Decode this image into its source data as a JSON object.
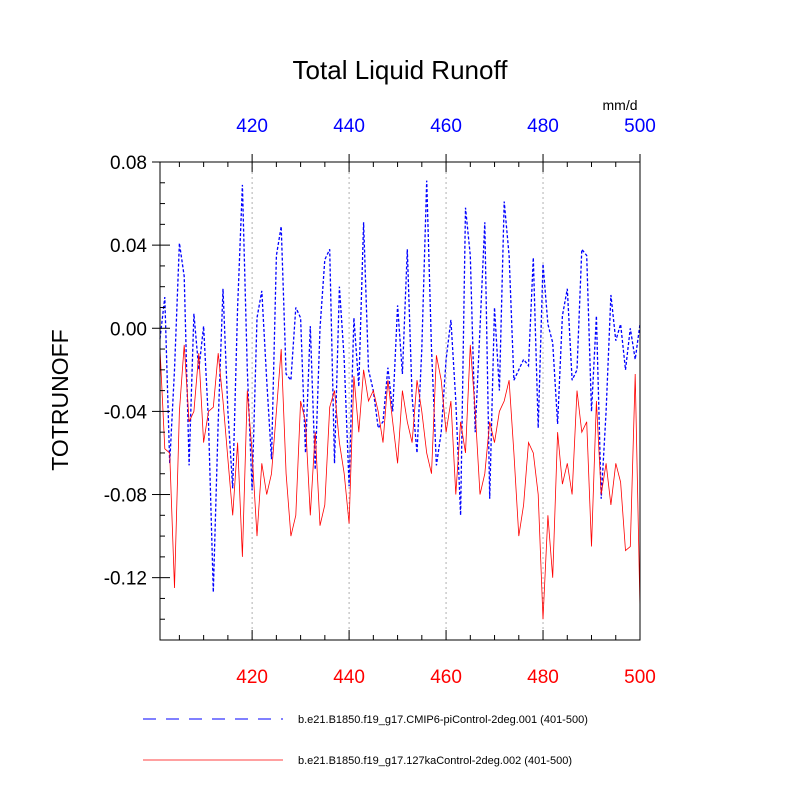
{
  "chart_data": {
    "type": "line",
    "title": "Total Liquid Runoff",
    "ylabel": "TOTRUNOFF",
    "units": "mm/d",
    "xlim": [
      401,
      500
    ],
    "ylim": [
      -0.15,
      0.08
    ],
    "xticks": [
      420,
      440,
      460,
      480,
      500
    ],
    "xtick_labels": [
      "420",
      "440",
      "460",
      "480",
      "500"
    ],
    "yticks": [
      0.08,
      0.04,
      0.0,
      -0.04,
      -0.08,
      -0.12
    ],
    "ytick_labels": [
      "0.08",
      "0.04",
      "0.00",
      "-0.04",
      "-0.08",
      "-0.12"
    ],
    "top_axis_color": "#0000ff",
    "bottom_axis_color": "#ff0000",
    "grid": "vertical dotted at major x ticks",
    "legend_position": "bottom",
    "series": [
      {
        "name": "b.e21.B1850.f19_g17.CMIP6-piControl-2deg.001 (401-500)",
        "color": "#0000ff",
        "style": "dashed",
        "x_start": 401,
        "values": [
          -0.005,
          0.015,
          -0.065,
          -0.02,
          0.041,
          0.025,
          -0.066,
          0.007,
          -0.02,
          0.001,
          -0.045,
          -0.127,
          -0.045,
          0.019,
          -0.04,
          -0.077,
          0.01,
          0.069,
          -0.02,
          -0.078,
          0.005,
          0.018,
          -0.025,
          -0.063,
          0.035,
          0.049,
          -0.022,
          -0.025,
          0.01,
          0.005,
          -0.06,
          0.001,
          -0.068,
          0.0,
          0.033,
          0.038,
          -0.065,
          0.02,
          -0.015,
          -0.076,
          0.005,
          -0.028,
          0.051,
          -0.02,
          -0.03,
          -0.048,
          -0.045,
          -0.019,
          -0.04,
          0.011,
          -0.022,
          0.038,
          -0.033,
          -0.06,
          -0.01,
          0.071,
          -0.01,
          -0.066,
          -0.05,
          -0.015,
          0.004,
          -0.035,
          -0.09,
          0.058,
          0.035,
          -0.05,
          0.0,
          0.051,
          -0.082,
          0.01,
          -0.03,
          0.061,
          0.035,
          -0.025,
          -0.02,
          -0.015,
          -0.018,
          0.034,
          -0.048,
          0.031,
          0.002,
          -0.007,
          -0.046,
          0.006,
          0.019,
          -0.025,
          -0.02,
          0.038,
          0.035,
          -0.04,
          0.006,
          -0.082,
          -0.04,
          0.016,
          -0.006,
          0.002,
          -0.02,
          0.0,
          -0.015,
          0.002
        ]
      },
      {
        "name": "b.e21.B1850.f19_g17.127kaControl-2deg.002 (401-500)",
        "color": "#ff0000",
        "style": "solid",
        "x_start": 401,
        "values": [
          -0.01,
          -0.058,
          -0.06,
          -0.125,
          -0.04,
          -0.008,
          -0.045,
          -0.04,
          -0.012,
          -0.055,
          -0.04,
          -0.038,
          -0.012,
          -0.035,
          -0.063,
          -0.09,
          -0.055,
          -0.11,
          -0.03,
          -0.06,
          -0.1,
          -0.065,
          -0.08,
          -0.07,
          -0.04,
          -0.01,
          -0.07,
          -0.1,
          -0.09,
          -0.035,
          -0.045,
          -0.09,
          -0.05,
          -0.095,
          -0.085,
          -0.038,
          -0.03,
          -0.055,
          -0.07,
          -0.094,
          -0.023,
          -0.05,
          -0.02,
          -0.035,
          -0.03,
          -0.04,
          -0.055,
          -0.025,
          -0.045,
          -0.065,
          -0.03,
          -0.045,
          -0.055,
          -0.025,
          -0.04,
          -0.06,
          -0.07,
          -0.013,
          -0.025,
          -0.05,
          -0.035,
          -0.08,
          -0.045,
          -0.06,
          -0.008,
          -0.04,
          -0.08,
          -0.07,
          -0.045,
          -0.055,
          -0.04,
          -0.035,
          -0.025,
          -0.06,
          -0.1,
          -0.085,
          -0.055,
          -0.06,
          -0.08,
          -0.14,
          -0.09,
          -0.12,
          -0.05,
          -0.075,
          -0.065,
          -0.08,
          -0.03,
          -0.05,
          -0.045,
          -0.105,
          -0.035,
          -0.08,
          -0.065,
          -0.085,
          -0.065,
          -0.074,
          -0.107,
          -0.105,
          -0.022,
          -0.135
        ]
      }
    ]
  }
}
